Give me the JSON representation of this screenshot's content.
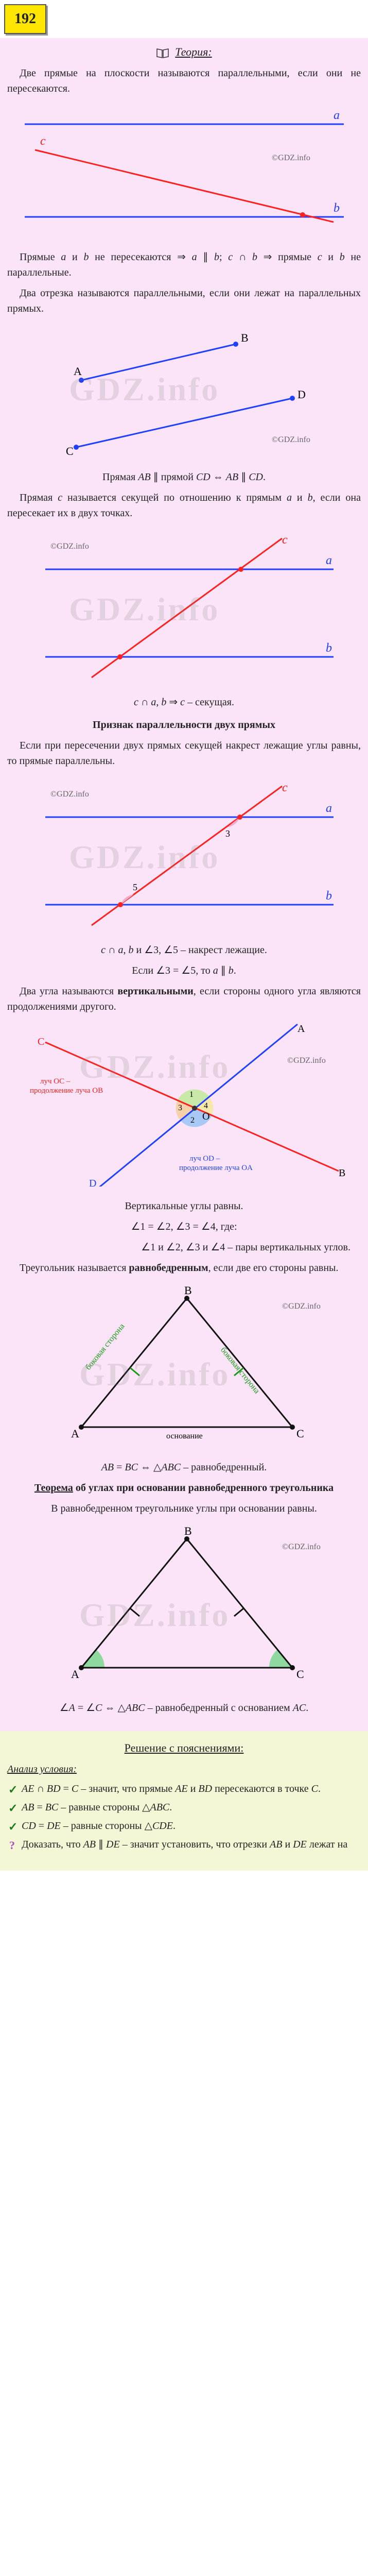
{
  "badge": "192",
  "theory": {
    "title": "Теория:",
    "p1": "Две прямые на плоскости называются параллельными, если они не пересекаются.",
    "p2_html": "Прямые <i>a</i> и <i>b</i> не пересекаются ⇒ <i>a</i> ∥ <i>b</i>; <i>c</i> ∩ <i>b</i> ⇒ прямые <i>c</i> и <i>b</i> не параллельные.",
    "p3": "Два отрезка называются параллельными, если они лежат на параллельных прямых.",
    "p4_html": "Прямая <i>AB</i> ∥ прямой <i>CD</i> ⇔ <i>AB</i> ∥ <i>CD</i>.",
    "p5_html": "Прямая <i>c</i> называется секущей по отношению к прямым <i>a</i> и <i>b</i>, если она пересекает их в двух точках.",
    "p6_html": "<i>c</i> ∩ <i>a</i>, <i>b</i> ⇒ <i>c</i> – секущая.",
    "sub1": "Признак параллельности двух прямых",
    "p7": "Если при пересечении двух прямых секущей накрест лежащие углы равны, то прямые параллельны.",
    "p8_html": "<i>c</i> ∩ <i>a</i>, <i>b</i> и ∠3, ∠5 – накрест лежащие.",
    "p9_html": "Если ∠3 = ∠5, то <i>a</i> ∥ <i>b</i>.",
    "p10_html": "Два угла называются <b>вертикальными</b>, если стороны одного угла являются продолжениями другого.",
    "p11": "Вертикальные углы равны.",
    "p12": "∠1 = ∠2, ∠3 = ∠4, где:",
    "p13": "∠1 и ∠2, ∠3 и ∠4 – пары вертикальных углов.",
    "p14_html": "Треугольник называется <b>равнобедренным</b>, если две его стороны равны.",
    "p15_html": "<i>AB</i> = <i>BC</i> ⇔ △<i>ABC</i> – равнобедренный.",
    "sub2_html": "<b><u>Теорема</u> об углах при основании равнобедренного треугольника</b>",
    "p16": "В равнобедренном треугольнике углы при основании равны.",
    "p17_html": "∠<i>A</i> = ∠<i>C</i> ⇔ △<i>ABC</i> – равнобедренный с основанием <i>AC</i>."
  },
  "figures": {
    "copyright": "©GDZ.info",
    "watermark": "GDZ.info",
    "fig1": {
      "line_a_color": "#2040ff",
      "line_b_color": "#2040ff",
      "line_c_color": "#ff2020",
      "label_a": "a",
      "label_b": "b",
      "label_c": "c"
    },
    "fig2": {
      "seg_color": "#2040ff",
      "point_color": "#2040ff",
      "A": "A",
      "B": "B",
      "C": "C",
      "D": "D"
    },
    "fig3": {
      "line_a_color": "#2040ff",
      "line_b_color": "#2040ff",
      "line_c_color": "#ff2020",
      "label_a": "a",
      "label_b": "b",
      "label_c": "c"
    },
    "fig4": {
      "line_a_color": "#2040ff",
      "line_b_color": "#2040ff",
      "line_c_color": "#ff2020",
      "angle_fill": "#f5a8c8",
      "label_a": "a",
      "label_b": "b",
      "label_c": "c",
      "ang3": "3",
      "ang5": "5"
    },
    "fig5": {
      "line_ab_color": "#2040ff",
      "line_cd_color": "#ff2020",
      "fill1": "#c8e8a8",
      "fill2": "#a8c8f5",
      "fill3": "#f5d0a8",
      "fill4": "#f5e8a8",
      "A": "A",
      "B": "B",
      "C": "C",
      "D": "D",
      "O": "O",
      "n1": "1",
      "n2": "2",
      "n3": "3",
      "n4": "4",
      "note_oc": "луч OC – продолжение луча OB",
      "note_od": "луч OD – продолжение луча OA"
    },
    "fig6": {
      "side_color": "#111",
      "side_eq_color": "#1a9a1a",
      "A": "A",
      "B": "B",
      "C": "C",
      "lbl_side": "боковая сторона",
      "lbl_base": "основание"
    },
    "fig7": {
      "side_color": "#111",
      "angle_fill": "#8fd89f",
      "A": "A",
      "B": "B",
      "C": "C"
    }
  },
  "solution": {
    "header": "Решение с пояснениями:",
    "analysis_title": "Анализ условия:",
    "chk1_html": "<i>AE</i> ∩ <i>BD</i> = <i>C</i> – значит, что прямые <i>AE</i> и <i>BD</i> пересекаются в точке <i>C</i>.",
    "chk2_html": "<i>AB</i> = <i>BC</i> – равные стороны △<i>ABC</i>.",
    "chk3_html": "<i>CD</i> = <i>DE</i> – равные стороны △<i>CDE</i>.",
    "q1_html": "Доказать, что <i>AB</i> ∥ <i>DE</i> – значит установить, что отрезки <i>AB</i> и <i>DE</i> лежат на"
  },
  "colors": {
    "theory_bg": "#fbe4f7",
    "solution_bg": "#f3f7d5",
    "badge_bg": "#ffe600"
  }
}
